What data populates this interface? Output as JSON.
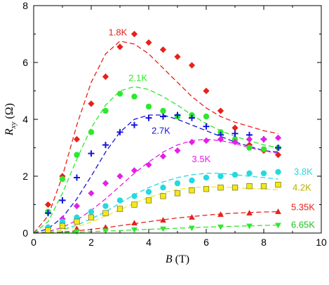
{
  "chart_data": {
    "type": "scatter",
    "title": "",
    "xlabel_var": "B",
    "xlabel_unit": " (T)",
    "ylabel_var": "R",
    "ylabel_sub": "xy",
    "ylabel_unit": " (Ω)",
    "xlim": [
      0,
      10
    ],
    "ylim": [
      0,
      8
    ],
    "x_ticks": [
      0,
      2,
      4,
      6,
      8,
      10
    ],
    "y_ticks": [
      0,
      2,
      4,
      6,
      8
    ],
    "x_tick_labels": [
      "0",
      "2",
      "4",
      "6",
      "8",
      "10"
    ],
    "y_tick_labels": [
      "0",
      "2",
      "4",
      "6",
      "8"
    ],
    "grid": false,
    "legend": "inline labels",
    "series": [
      {
        "name": "1.8K",
        "color": "#e8201a",
        "marker": "diamond",
        "label_pos": [
          2.6,
          6.95
        ],
        "x": [
          0.5,
          1.0,
          1.5,
          2.0,
          2.5,
          3.0,
          3.5,
          4.0,
          4.5,
          5.0,
          5.5,
          6.0,
          6.5,
          7.0,
          7.5,
          8.0,
          8.5
        ],
        "y": [
          1.0,
          2.0,
          3.3,
          4.55,
          5.5,
          6.55,
          7.0,
          6.7,
          6.45,
          6.2,
          5.9,
          5.0,
          4.3,
          3.7,
          3.1,
          2.9,
          2.75
        ],
        "fit_x": [
          0.0,
          0.5,
          1.0,
          1.5,
          2.0,
          2.5,
          3.0,
          3.5,
          4.0,
          4.5,
          5.0,
          5.5,
          6.0,
          6.5,
          7.0,
          7.5,
          8.0,
          8.5
        ],
        "fit_y": [
          0.0,
          0.6,
          2.0,
          3.8,
          5.3,
          6.3,
          6.75,
          6.65,
          6.3,
          5.8,
          5.3,
          4.8,
          4.4,
          4.1,
          3.9,
          3.75,
          3.6,
          3.5
        ]
      },
      {
        "name": "2.1K",
        "color": "#2ee82e",
        "marker": "circle",
        "label_pos": [
          3.3,
          5.35
        ],
        "x": [
          0.5,
          1.0,
          1.5,
          2.0,
          2.5,
          3.0,
          3.5,
          4.0,
          4.5,
          5.0,
          5.5,
          6.0,
          6.5,
          7.0,
          7.5,
          8.0,
          8.5
        ],
        "y": [
          0.75,
          1.9,
          2.75,
          3.55,
          4.3,
          4.9,
          4.8,
          4.45,
          4.3,
          4.1,
          4.15,
          4.1,
          3.55,
          3.3,
          3.0,
          2.95,
          3.0
        ],
        "fit_x": [
          0.0,
          0.5,
          1.0,
          1.5,
          2.0,
          2.5,
          3.0,
          3.5,
          4.0,
          4.5,
          5.0,
          5.5,
          6.0,
          6.5,
          7.0,
          7.5,
          8.0,
          8.5
        ],
        "fit_y": [
          0.0,
          0.4,
          1.4,
          2.6,
          3.7,
          4.5,
          5.0,
          5.15,
          5.05,
          4.8,
          4.5,
          4.15,
          3.85,
          3.6,
          3.4,
          3.25,
          3.1,
          3.0
        ]
      },
      {
        "name": "2.7K",
        "color": "#1515d8",
        "marker": "plus",
        "label_pos": [
          4.1,
          3.5
        ],
        "x": [
          0.5,
          1.0,
          1.5,
          2.0,
          2.5,
          3.0,
          3.5,
          4.0,
          4.5,
          5.0,
          5.5,
          6.0,
          6.5,
          7.0,
          7.5,
          8.0,
          8.5
        ],
        "y": [
          0.7,
          1.15,
          1.95,
          2.8,
          3.1,
          3.55,
          3.8,
          4.05,
          4.1,
          4.15,
          4.05,
          3.75,
          3.45,
          3.5,
          3.45,
          3.3,
          3.0
        ],
        "fit_x": [
          0.0,
          0.5,
          1.0,
          1.5,
          2.0,
          2.5,
          3.0,
          3.5,
          4.0,
          4.5,
          5.0,
          5.5,
          6.0,
          6.5,
          7.0,
          7.5,
          8.0,
          8.5
        ],
        "fit_y": [
          0.0,
          0.15,
          0.55,
          1.2,
          2.0,
          2.85,
          3.55,
          4.0,
          4.15,
          4.15,
          4.0,
          3.8,
          3.6,
          3.4,
          3.2,
          3.05,
          2.9,
          2.85
        ]
      },
      {
        "name": "3.5K",
        "color": "#e51ee8",
        "marker": "diamond",
        "label_pos": [
          5.5,
          2.5
        ],
        "x": [
          0.5,
          1.0,
          1.5,
          2.0,
          2.5,
          3.0,
          3.5,
          4.0,
          4.5,
          5.0,
          5.5,
          6.0,
          6.5,
          7.0,
          7.5,
          8.0,
          8.5
        ],
        "y": [
          0.2,
          0.5,
          0.95,
          1.4,
          1.75,
          2.0,
          2.2,
          2.4,
          2.7,
          2.9,
          3.2,
          3.25,
          3.3,
          3.2,
          3.3,
          3.3,
          3.35
        ],
        "fit_x": [
          0.0,
          0.5,
          1.0,
          1.5,
          2.0,
          2.5,
          3.0,
          3.5,
          4.0,
          4.5,
          5.0,
          5.5,
          6.0,
          6.5,
          7.0,
          7.5,
          8.0,
          8.5
        ],
        "fit_y": [
          0.0,
          0.05,
          0.2,
          0.45,
          0.8,
          1.2,
          1.65,
          2.1,
          2.5,
          2.85,
          3.1,
          3.25,
          3.3,
          3.25,
          3.15,
          3.0,
          2.9,
          2.8
        ]
      },
      {
        "name": "3.8K",
        "color": "#25d9e0",
        "marker": "circle",
        "label_pos": [
          9.05,
          2.05
        ],
        "x": [
          0.5,
          1.0,
          1.5,
          2.0,
          2.5,
          3.0,
          3.5,
          4.0,
          4.5,
          5.0,
          5.5,
          6.0,
          6.5,
          7.0,
          7.5,
          8.0,
          8.5
        ],
        "y": [
          0.2,
          0.4,
          0.55,
          0.75,
          0.95,
          1.15,
          1.3,
          1.45,
          1.6,
          1.75,
          1.85,
          1.95,
          2.0,
          2.05,
          2.1,
          2.1,
          2.15
        ],
        "fit_x": [
          0.0,
          0.5,
          1.0,
          1.5,
          2.0,
          2.5,
          3.0,
          3.5,
          4.0,
          4.5,
          5.0,
          5.5,
          6.0,
          6.5,
          7.0,
          7.5,
          8.0,
          8.5
        ],
        "fit_y": [
          0.0,
          0.03,
          0.12,
          0.28,
          0.5,
          0.75,
          1.05,
          1.35,
          1.6,
          1.8,
          1.95,
          2.05,
          2.1,
          2.1,
          2.05,
          2.0,
          1.95,
          1.9
        ]
      },
      {
        "name": "4.2K",
        "color": "#f2e81a",
        "edge": "#5a5a00",
        "text_color": "#b8b000",
        "marker": "square",
        "label_pos": [
          9.0,
          1.5
        ],
        "x": [
          0.5,
          1.0,
          1.5,
          2.0,
          2.5,
          3.0,
          3.5,
          4.0,
          4.5,
          5.0,
          5.5,
          6.0,
          6.5,
          7.0,
          7.5,
          8.0,
          8.5
        ],
        "y": [
          0.1,
          0.25,
          0.4,
          0.55,
          0.7,
          0.85,
          1.0,
          1.15,
          1.3,
          1.4,
          1.5,
          1.55,
          1.6,
          1.6,
          1.65,
          1.65,
          1.7
        ],
        "fit_x": [
          0.0,
          0.5,
          1.0,
          1.5,
          2.0,
          2.5,
          3.0,
          3.5,
          4.0,
          4.5,
          5.0,
          5.5,
          6.0,
          6.5,
          7.0,
          7.5,
          8.0,
          8.5
        ],
        "fit_y": [
          0.0,
          0.03,
          0.1,
          0.22,
          0.38,
          0.6,
          0.82,
          1.05,
          1.25,
          1.42,
          1.53,
          1.6,
          1.62,
          1.62,
          1.6,
          1.57,
          1.55,
          1.52
        ]
      },
      {
        "name": "5.35K",
        "color": "#e8201a",
        "marker": "triangle-up",
        "label_pos": [
          8.95,
          0.8
        ],
        "x": [
          1.5,
          2.5,
          3.5,
          4.5,
          5.5,
          6.5,
          7.5,
          8.5
        ],
        "y": [
          0.15,
          0.2,
          0.35,
          0.45,
          0.55,
          0.65,
          0.7,
          0.75
        ],
        "fit_x": [
          0.0,
          0.5,
          1.0,
          1.5,
          2.0,
          2.5,
          3.0,
          3.5,
          4.0,
          4.5,
          5.0,
          5.5,
          6.0,
          6.5,
          7.0,
          7.5,
          8.0,
          8.5
        ],
        "fit_y": [
          0.0,
          0.01,
          0.04,
          0.08,
          0.13,
          0.19,
          0.26,
          0.33,
          0.4,
          0.47,
          0.53,
          0.58,
          0.63,
          0.67,
          0.7,
          0.72,
          0.74,
          0.75
        ]
      },
      {
        "name": "6.65K",
        "color": "#2ee82e",
        "text_color": "#22c022",
        "marker": "triangle-down",
        "label_pos": [
          8.95,
          0.18
        ],
        "x": [
          1.5,
          2.5,
          3.5,
          4.5,
          5.5,
          6.5,
          7.5,
          8.5
        ],
        "y": [
          0.05,
          0.08,
          0.12,
          0.15,
          0.18,
          0.22,
          0.25,
          0.28
        ],
        "fit_x": [
          0.0,
          1.0,
          2.0,
          3.0,
          4.0,
          5.0,
          6.0,
          7.0,
          8.0,
          8.5
        ],
        "fit_y": [
          0.0,
          0.02,
          0.05,
          0.09,
          0.13,
          0.17,
          0.21,
          0.24,
          0.27,
          0.28
        ]
      }
    ]
  }
}
